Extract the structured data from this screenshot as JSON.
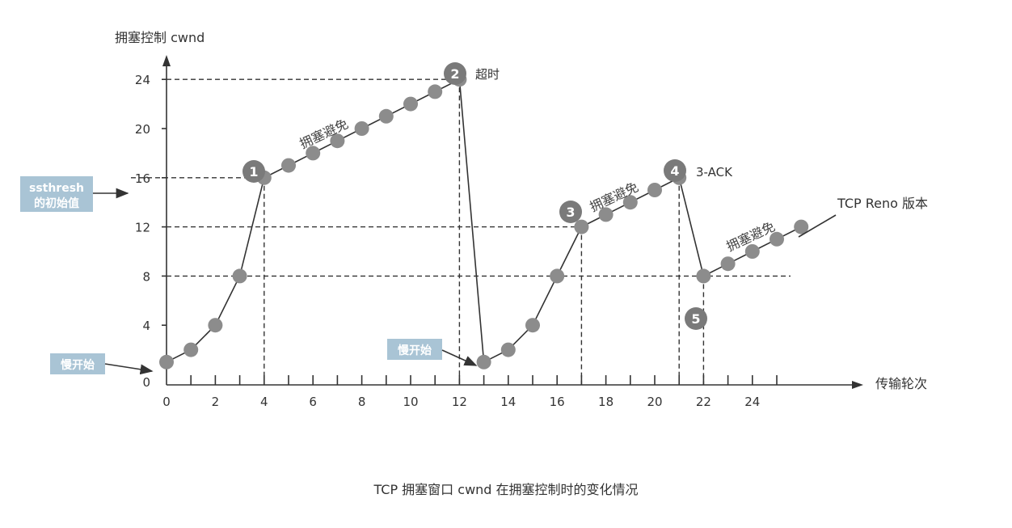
{
  "chart_data": {
    "type": "line",
    "ylabel": "拥塞控制 cwnd",
    "xlabel": "传输轮次",
    "caption": "TCP 拥塞窗口 cwnd 在拥塞控制时的变化情况",
    "x_ticks": [
      "0",
      "2",
      "4",
      "6",
      "8",
      "10",
      "12",
      "14",
      "16",
      "18",
      "20",
      "22",
      "24"
    ],
    "y_ticks": [
      "0",
      "4",
      "8",
      "12",
      "16",
      "20",
      "24"
    ],
    "xlim": [
      0,
      26
    ],
    "ylim": [
      0,
      26
    ],
    "series": [
      {
        "points": [
          [
            0,
            1
          ],
          [
            1,
            2
          ],
          [
            2,
            4
          ],
          [
            3,
            8
          ],
          [
            4,
            16
          ],
          [
            5,
            17
          ],
          [
            6,
            18
          ],
          [
            7,
            19
          ],
          [
            8,
            20
          ],
          [
            9,
            21
          ],
          [
            10,
            22
          ],
          [
            11,
            23
          ],
          [
            12,
            24
          ],
          [
            13,
            1
          ],
          [
            14,
            2
          ],
          [
            15,
            4
          ],
          [
            16,
            8
          ],
          [
            17,
            12
          ],
          [
            18,
            13
          ],
          [
            19,
            14
          ],
          [
            20,
            15
          ],
          [
            21,
            16
          ],
          [
            22,
            8
          ],
          [
            23,
            9
          ],
          [
            24,
            10
          ],
          [
            25,
            11
          ],
          [
            26,
            12
          ]
        ]
      }
    ],
    "threshold_lines": [
      24,
      16,
      12,
      8
    ],
    "markers": [
      {
        "label": "1",
        "text": ""
      },
      {
        "label": "2",
        "text": "超时"
      },
      {
        "label": "3",
        "text": ""
      },
      {
        "label": "4",
        "text": "3-ACK"
      },
      {
        "label": "5",
        "text": ""
      }
    ],
    "annotations": {
      "congestion_avoidance": "拥塞避免",
      "slow_start": "慢开始",
      "ssthresh_line1": "ssthresh",
      "ssthresh_line2": "的初始值",
      "reno": "TCP Reno 版本"
    }
  },
  "colors": {
    "point": "#8c8c8c",
    "marker": "#7a7a7a",
    "line": "#333333",
    "callout_bg": "#a9c4d5"
  }
}
